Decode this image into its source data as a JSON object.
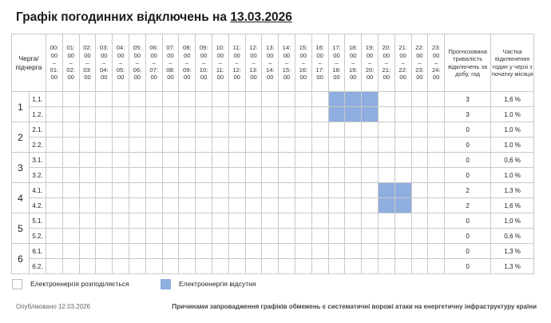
{
  "title": {
    "prefix": "Графік погодинних відключень на ",
    "date": "13.03.2026"
  },
  "table": {
    "queue_header": "Черга/ підчерга",
    "hours": [
      {
        "from": "00:00",
        "to": "01:00"
      },
      {
        "from": "01:00",
        "to": "02:00"
      },
      {
        "from": "02:00",
        "to": "03:00"
      },
      {
        "from": "03:00",
        "to": "04:00"
      },
      {
        "from": "04:00",
        "to": "05:00"
      },
      {
        "from": "05:00",
        "to": "06:00"
      },
      {
        "from": "06:00",
        "to": "07:00"
      },
      {
        "from": "07:00",
        "to": "08:00"
      },
      {
        "from": "08:00",
        "to": "09:00"
      },
      {
        "from": "09:00",
        "to": "10:00"
      },
      {
        "from": "10:00",
        "to": "11:00"
      },
      {
        "from": "11:00",
        "to": "12:00"
      },
      {
        "from": "12:00",
        "to": "13:00"
      },
      {
        "from": "13:00",
        "to": "14:00"
      },
      {
        "from": "14:00",
        "to": "15:00"
      },
      {
        "from": "15:00",
        "to": "16:00"
      },
      {
        "from": "16:00",
        "to": "17:00"
      },
      {
        "from": "17:00",
        "to": "18:00"
      },
      {
        "from": "18:00",
        "to": "19:00"
      },
      {
        "from": "19:00",
        "to": "20:00"
      },
      {
        "from": "20:00",
        "to": "21:00"
      },
      {
        "from": "21:00",
        "to": "22:00"
      },
      {
        "from": "22:00",
        "to": "23:00"
      },
      {
        "from": "23:00",
        "to": "24:00"
      }
    ],
    "duration_header": "Прогнозована тривалість відключень за добу, год",
    "share_header": "Частка відключених годин у черзі з початку місяця",
    "groups": [
      {
        "label": "1",
        "rows": [
          {
            "sub": "1.1.",
            "off": [
              17,
              18,
              19
            ],
            "duration": "3",
            "share": "1,6 %"
          },
          {
            "sub": "1.2.",
            "off": [
              17,
              18,
              19
            ],
            "duration": "3",
            "share": "1.0 %"
          }
        ]
      },
      {
        "label": "2",
        "rows": [
          {
            "sub": "2.1.",
            "off": [],
            "duration": "0",
            "share": "1.0 %"
          },
          {
            "sub": "2.2.",
            "off": [],
            "duration": "0",
            "share": "1.0 %"
          }
        ]
      },
      {
        "label": "3",
        "rows": [
          {
            "sub": "3.1.",
            "off": [],
            "duration": "0",
            "share": "0,6 %"
          },
          {
            "sub": "3.2.",
            "off": [],
            "duration": "0",
            "share": "1.0 %"
          }
        ]
      },
      {
        "label": "4",
        "rows": [
          {
            "sub": "4.1.",
            "off": [
              20,
              21
            ],
            "duration": "2",
            "share": "1,3 %"
          },
          {
            "sub": "4.2.",
            "off": [
              20,
              21
            ],
            "duration": "2",
            "share": "1,6 %"
          }
        ]
      },
      {
        "label": "5",
        "rows": [
          {
            "sub": "5.1.",
            "off": [],
            "duration": "0",
            "share": "1,0 %"
          },
          {
            "sub": "5.2.",
            "off": [],
            "duration": "0",
            "share": "0,6 %"
          }
        ]
      },
      {
        "label": "6",
        "rows": [
          {
            "sub": "6.1.",
            "off": [],
            "duration": "0",
            "share": "1,3 %"
          },
          {
            "sub": "6.2.",
            "off": [],
            "duration": "0",
            "share": "1,3 %"
          }
        ]
      }
    ]
  },
  "legend": {
    "on_label": "Електроенергія розподіляється",
    "off_label": "Електроенергія відсутня",
    "off_color": "#8faee0"
  },
  "footer": {
    "published": "Опубліковано 12.03.2026",
    "note": "Причинами запровадження графіків обмежень є систематичні ворожі атаки на енергетичну інфраструктуру країни"
  }
}
